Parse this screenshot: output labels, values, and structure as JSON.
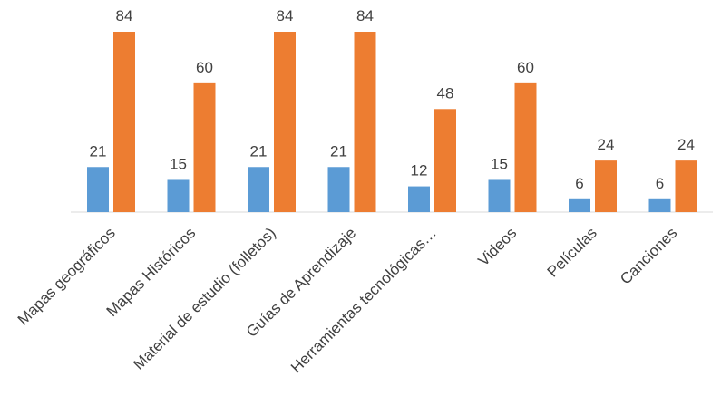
{
  "chart_data": {
    "type": "bar",
    "categories": [
      "Mapas geográficos",
      "Mapas Históricos",
      "Material de estudio (folletos)",
      "Guías de Aprendizaje",
      "Herramientas tecnológicas…",
      "Videos",
      "Películas",
      "Canciones"
    ],
    "series": [
      {
        "color": "#5b9bd5",
        "values": [
          21,
          15,
          21,
          21,
          12,
          15,
          6,
          6
        ]
      },
      {
        "color": "#ed7d31",
        "values": [
          84,
          60,
          84,
          84,
          48,
          60,
          24,
          24
        ]
      }
    ]
  }
}
